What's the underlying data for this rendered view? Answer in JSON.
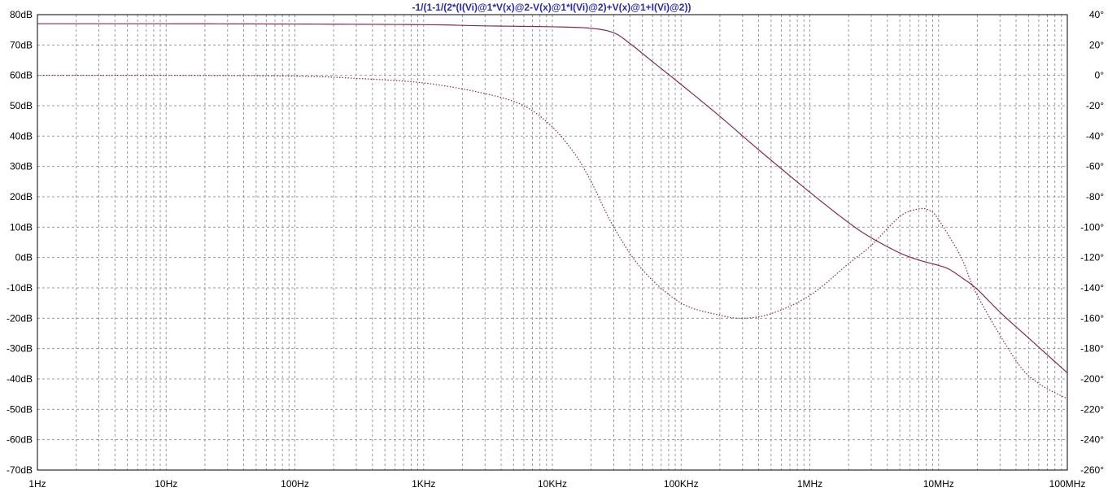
{
  "chart_data": {
    "type": "line",
    "title": "-1/(1-1/(2*(I(Vi)@1*V(x)@2-V(x)@1*I(Vi)@2)+V(x)@1+I(Vi)@2))",
    "x_scale": "log",
    "xlim_hz": [
      1,
      100000000
    ],
    "x_tick_labels": [
      "1Hz",
      "10Hz",
      "100Hz",
      "1KHz",
      "10KHz",
      "100KHz",
      "1MHz",
      "10MHz",
      "100MHz"
    ],
    "y_left": {
      "label": "",
      "unit": "dB",
      "lim": [
        -70,
        80
      ],
      "tick_labels": [
        "80dB",
        "70dB",
        "60dB",
        "50dB",
        "40dB",
        "30dB",
        "20dB",
        "10dB",
        "0dB",
        "-10dB",
        "-20dB",
        "-30dB",
        "-40dB",
        "-50dB",
        "-60dB",
        "-70dB"
      ]
    },
    "y_right": {
      "label": "",
      "unit": "deg",
      "lim": [
        -260,
        40
      ],
      "tick_labels": [
        "40°",
        "20°",
        "0°",
        "-20°",
        "-40°",
        "-60°",
        "-80°",
        "-100°",
        "-120°",
        "-140°",
        "-160°",
        "-180°",
        "-200°",
        "-220°",
        "-240°",
        "-260°"
      ]
    },
    "grid": true,
    "series": [
      {
        "kind": "magnitude",
        "axis": "left",
        "style": "solid",
        "color": "#8a2a4a",
        "points": [
          [
            1,
            77.0
          ],
          [
            10,
            77.0
          ],
          [
            100,
            76.9
          ],
          [
            1000,
            76.7
          ],
          [
            3000,
            76.3
          ],
          [
            10000,
            76.0
          ],
          [
            20000,
            75.5
          ],
          [
            30000,
            74.0
          ],
          [
            40000,
            70.5
          ],
          [
            60000,
            64.5
          ],
          [
            100000,
            57.0
          ],
          [
            200000,
            46.5
          ],
          [
            400000,
            35.5
          ],
          [
            1000000,
            21.5
          ],
          [
            2000000,
            11.5
          ],
          [
            3000000,
            6.5
          ],
          [
            5000000,
            1.5
          ],
          [
            7000000,
            -0.8
          ],
          [
            10000000,
            -2.6
          ],
          [
            12000000,
            -3.8
          ],
          [
            15000000,
            -6.5
          ],
          [
            20000000,
            -10.5
          ],
          [
            30000000,
            -18.0
          ],
          [
            50000000,
            -26.5
          ],
          [
            100000000,
            -38.0
          ]
        ]
      },
      {
        "kind": "phase",
        "axis": "right",
        "style": "dotted",
        "color": "#8a2a4a",
        "points": [
          [
            1,
            0
          ],
          [
            10,
            0
          ],
          [
            100,
            -0.5
          ],
          [
            300,
            -2
          ],
          [
            1000,
            -5
          ],
          [
            3000,
            -12
          ],
          [
            6000,
            -20
          ],
          [
            10000,
            -34
          ],
          [
            15000,
            -52
          ],
          [
            20000,
            -70
          ],
          [
            30000,
            -100
          ],
          [
            50000,
            -128
          ],
          [
            100000,
            -150
          ],
          [
            200000,
            -158
          ],
          [
            300000,
            -160
          ],
          [
            500000,
            -157
          ],
          [
            1000000,
            -145
          ],
          [
            2000000,
            -124
          ],
          [
            3000000,
            -112
          ],
          [
            5000000,
            -93
          ],
          [
            7000000,
            -88
          ],
          [
            8500000,
            -89
          ],
          [
            10000000,
            -95
          ],
          [
            15000000,
            -120
          ],
          [
            20000000,
            -145
          ],
          [
            40000000,
            -188
          ],
          [
            60000000,
            -203
          ],
          [
            100000000,
            -213
          ]
        ]
      }
    ]
  }
}
